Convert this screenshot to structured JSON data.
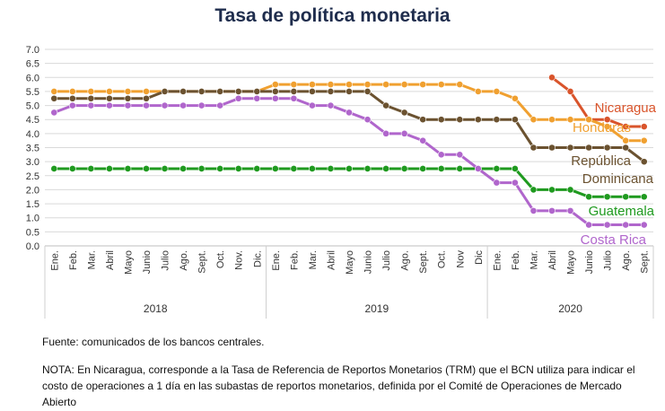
{
  "chart_data": {
    "type": "line",
    "title": "Tasa de política monetaria",
    "ylim": [
      0,
      7
    ],
    "yticks": [
      "0.0",
      "0.5",
      "1.0",
      "1.5",
      "2.0",
      "2.5",
      "3.0",
      "3.5",
      "4.0",
      "4.5",
      "5.0",
      "5.5",
      "6.0",
      "6.5",
      "7.0"
    ],
    "categories": [
      "Ene.",
      "Feb.",
      "Mar.",
      "Abril",
      "Mayo",
      "Junio",
      "Julio",
      "Ago.",
      "Sept.",
      "Oct.",
      "Nov.",
      "Dic.",
      "Ene.",
      "Feb.",
      "Mar.",
      "Abril",
      "Mayo",
      "Junio",
      "Julio",
      "Ago.",
      "Sept.",
      "Oct.",
      "Nov",
      "Dic",
      "Ene.",
      "Feb.",
      "Mar.",
      "Abril",
      "Mayo",
      "Junio",
      "Julio",
      "Ago.",
      "Sept."
    ],
    "years": [
      {
        "label": "2018",
        "start": 0,
        "end": 11
      },
      {
        "label": "2019",
        "start": 12,
        "end": 23
      },
      {
        "label": "2020",
        "start": 24,
        "end": 32
      }
    ],
    "grid": true,
    "series": [
      {
        "name": "Nicaragua",
        "label_lines": [
          "Nicaragua"
        ],
        "color": "#d9542b",
        "values": [
          null,
          null,
          null,
          null,
          null,
          null,
          null,
          null,
          null,
          null,
          null,
          null,
          null,
          null,
          null,
          null,
          null,
          null,
          null,
          null,
          null,
          null,
          null,
          null,
          null,
          null,
          null,
          6.0,
          5.5,
          4.5,
          4.5,
          4.25,
          4.25
        ]
      },
      {
        "name": "Honduras",
        "label_lines": [
          "Honduras"
        ],
        "color": "#f0a030",
        "values": [
          5.5,
          5.5,
          5.5,
          5.5,
          5.5,
          5.5,
          5.5,
          5.5,
          5.5,
          5.5,
          5.5,
          5.5,
          5.75,
          5.75,
          5.75,
          5.75,
          5.75,
          5.75,
          5.75,
          5.75,
          5.75,
          5.75,
          5.75,
          5.5,
          5.5,
          5.25,
          4.5,
          4.5,
          4.5,
          4.5,
          4.25,
          3.75,
          3.75
        ]
      },
      {
        "name": "República Dominicana",
        "label_lines": [
          "República",
          "Dominicana"
        ],
        "color": "#6b5230",
        "values": [
          5.25,
          5.25,
          5.25,
          5.25,
          5.25,
          5.25,
          5.5,
          5.5,
          5.5,
          5.5,
          5.5,
          5.5,
          5.5,
          5.5,
          5.5,
          5.5,
          5.5,
          5.5,
          5.0,
          4.75,
          4.5,
          4.5,
          4.5,
          4.5,
          4.5,
          4.5,
          3.5,
          3.5,
          3.5,
          3.5,
          3.5,
          3.5,
          3.0
        ]
      },
      {
        "name": "Guatemala",
        "label_lines": [
          "Guatemala"
        ],
        "color": "#1f9a1f",
        "values": [
          2.75,
          2.75,
          2.75,
          2.75,
          2.75,
          2.75,
          2.75,
          2.75,
          2.75,
          2.75,
          2.75,
          2.75,
          2.75,
          2.75,
          2.75,
          2.75,
          2.75,
          2.75,
          2.75,
          2.75,
          2.75,
          2.75,
          2.75,
          2.75,
          2.75,
          2.75,
          2.0,
          2.0,
          2.0,
          1.75,
          1.75,
          1.75,
          1.75
        ]
      },
      {
        "name": "Costa Rica",
        "label_lines": [
          "Costa Rica"
        ],
        "color": "#b066cc",
        "values": [
          4.75,
          5.0,
          5.0,
          5.0,
          5.0,
          5.0,
          5.0,
          5.0,
          5.0,
          5.0,
          5.25,
          5.25,
          5.25,
          5.25,
          5.0,
          5.0,
          4.75,
          4.5,
          4.0,
          4.0,
          3.75,
          3.25,
          3.25,
          2.75,
          2.25,
          2.25,
          1.25,
          1.25,
          1.25,
          0.75,
          0.75,
          0.75,
          0.75
        ]
      }
    ]
  },
  "footer": {
    "source": "Fuente: comunicados de los bancos centrales.",
    "note": "NOTA: En Nicaragua, corresponde a la Tasa de Referencia de Reportos Monetarios (TRM) que el BCN utiliza para indicar el costo de operaciones a 1 día en las subastas de reportos monetarios, definida por el Comité de Operaciones de Mercado Abierto"
  }
}
